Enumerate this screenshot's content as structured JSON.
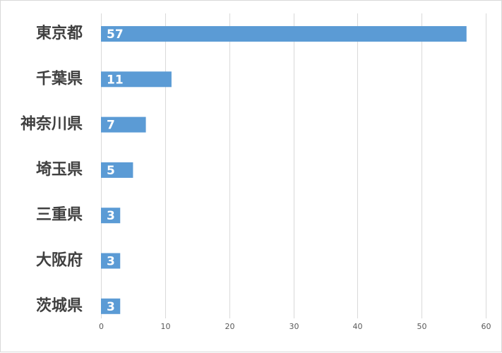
{
  "chart_data": {
    "type": "bar",
    "orientation": "horizontal",
    "categories": [
      "東京都",
      "千葉県",
      "神奈川県",
      "埼玉県",
      "三重県",
      "大阪府",
      "茨城県"
    ],
    "values": [
      57,
      11,
      7,
      5,
      3,
      3,
      3
    ],
    "data_labels": [
      "57",
      "11",
      "7",
      "5",
      "3",
      "3",
      "3"
    ],
    "xlim": [
      0,
      60
    ],
    "x_ticks": [
      0,
      10,
      20,
      30,
      40,
      50,
      60
    ],
    "x_tick_labels": [
      "0",
      "10",
      "20",
      "30",
      "40",
      "50",
      "60"
    ],
    "grid": true,
    "legend": "none",
    "bar_color": "#5b9bd5",
    "data_label_color": "#ffffff"
  }
}
